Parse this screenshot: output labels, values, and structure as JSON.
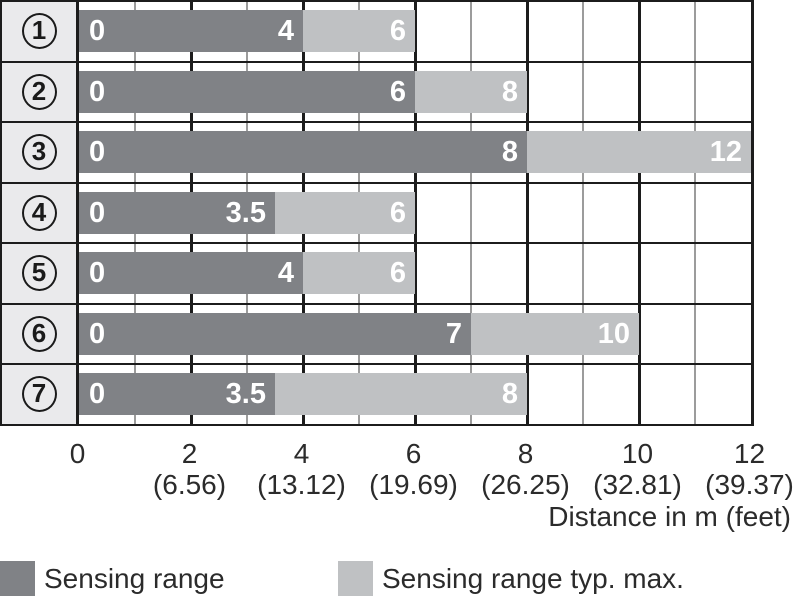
{
  "chart_data": {
    "type": "bar",
    "orientation": "horizontal-stacked-range",
    "title": "",
    "xlabel": "Distance in m (feet)",
    "ylabel": "",
    "xlim": [
      0,
      12
    ],
    "grid": {
      "minor_step": 1,
      "major_step": 2
    },
    "categories": [
      "1",
      "2",
      "3",
      "4",
      "5",
      "6",
      "7"
    ],
    "series": [
      {
        "name": "Sensing range",
        "color": "#808286",
        "values": [
          4,
          6,
          8,
          3.5,
          4,
          7,
          3.5
        ]
      },
      {
        "name": "Sensing range typ. max.",
        "color": "#bfc1c3",
        "values": [
          6,
          8,
          12,
          6,
          6,
          10,
          8
        ]
      }
    ],
    "rows": [
      {
        "num": "1",
        "range_end": 4,
        "typ_max_end": 6,
        "start_label": "0",
        "range_label": "4",
        "max_label": "6"
      },
      {
        "num": "2",
        "range_end": 6,
        "typ_max_end": 8,
        "start_label": "0",
        "range_label": "6",
        "max_label": "8"
      },
      {
        "num": "3",
        "range_end": 8,
        "typ_max_end": 12,
        "start_label": "0",
        "range_label": "8",
        "max_label": "12"
      },
      {
        "num": "4",
        "range_end": 3.5,
        "typ_max_end": 6,
        "start_label": "0",
        "range_label": "3.5",
        "max_label": "6"
      },
      {
        "num": "5",
        "range_end": 4,
        "typ_max_end": 6,
        "start_label": "0",
        "range_label": "4",
        "max_label": "6"
      },
      {
        "num": "6",
        "range_end": 7,
        "typ_max_end": 10,
        "start_label": "0",
        "range_label": "7",
        "max_label": "10"
      },
      {
        "num": "7",
        "range_end": 3.5,
        "typ_max_end": 8,
        "start_label": "0",
        "range_label": "3.5",
        "max_label": "8"
      }
    ],
    "x_ticks": [
      {
        "value": 0,
        "m_label": "0",
        "feet_label": ""
      },
      {
        "value": 2,
        "m_label": "2",
        "feet_label": "(6.56)"
      },
      {
        "value": 4,
        "m_label": "4",
        "feet_label": "(13.12)"
      },
      {
        "value": 6,
        "m_label": "6",
        "feet_label": "(19.69)"
      },
      {
        "value": 8,
        "m_label": "8",
        "feet_label": "(26.25)"
      },
      {
        "value": 10,
        "m_label": "10",
        "feet_label": "(32.81)"
      },
      {
        "value": 12,
        "m_label": "12",
        "feet_label": "(39.37)"
      }
    ],
    "legend": [
      {
        "label": "Sensing range",
        "color": "#808286"
      },
      {
        "label": "Sensing range typ. max.",
        "color": "#bfc1c3"
      }
    ],
    "colors": {
      "dark_bar": "#808286",
      "light_bar": "#bfc1c3",
      "label_cell_bg": "#eaeaec",
      "major_gridline": "#1c1c1c",
      "minor_gridline": "#9c9c9c",
      "bar_text": "#ffffff",
      "axis_text": "#2b2b2b"
    }
  }
}
